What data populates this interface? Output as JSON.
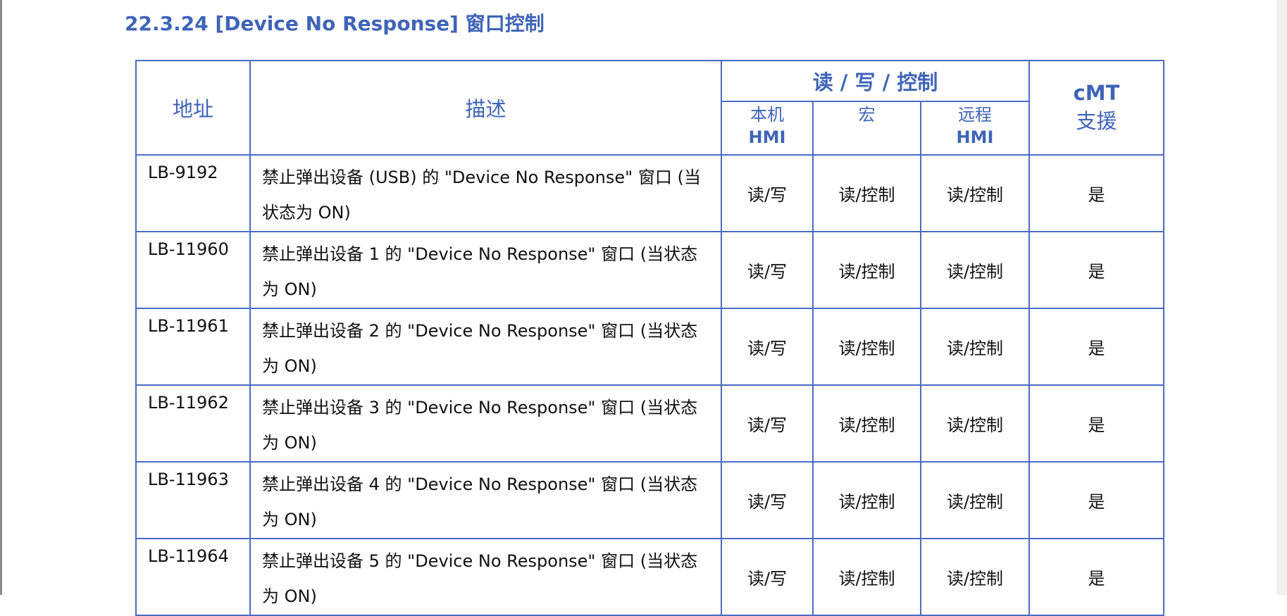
{
  "title": "22.3.24 [Device No Response]  窗口控制",
  "headers": {
    "address": "地址",
    "description": "描述",
    "rwc": "读 / 写 / 控制",
    "local_hmi_1": "本机",
    "local_hmi_2": "HMI",
    "macro": "宏",
    "remote_hmi_1": "远程",
    "remote_hmi_2": "HMI",
    "cmt_1": "cMT",
    "cmt_2": "支援"
  },
  "rows": [
    {
      "address": "LB-9192",
      "description": "禁止弹出设备 (USB) 的 \"Device No Response\" 窗口 (当状态为 ON)",
      "local": "读/写",
      "macro": "读/控制",
      "remote": "读/控制",
      "cmt": "是"
    },
    {
      "address": "LB-11960",
      "description": "禁止弹出设备 1 的 \"Device No Response\" 窗口 (当状态为 ON)",
      "local": "读/写",
      "macro": "读/控制",
      "remote": "读/控制",
      "cmt": "是"
    },
    {
      "address": "LB-11961",
      "description": "禁止弹出设备 2 的 \"Device No Response\" 窗口 (当状态为 ON)",
      "local": "读/写",
      "macro": "读/控制",
      "remote": "读/控制",
      "cmt": "是"
    },
    {
      "address": "LB-11962",
      "description": "禁止弹出设备 3 的 \"Device No Response\" 窗口 (当状态为 ON)",
      "local": "读/写",
      "macro": "读/控制",
      "remote": "读/控制",
      "cmt": "是"
    },
    {
      "address": "LB-11963",
      "description": "禁止弹出设备 4 的 \"Device No Response\" 窗口 (当状态为 ON)",
      "local": "读/写",
      "macro": "读/控制",
      "remote": "读/控制",
      "cmt": "是"
    },
    {
      "address": "LB-11964",
      "description": "禁止弹出设备 5 的 \"Device No Response\" 窗口 (当状态为 ON)",
      "local": "读/写",
      "macro": "读/控制",
      "remote": "读/控制",
      "cmt": "是"
    }
  ]
}
